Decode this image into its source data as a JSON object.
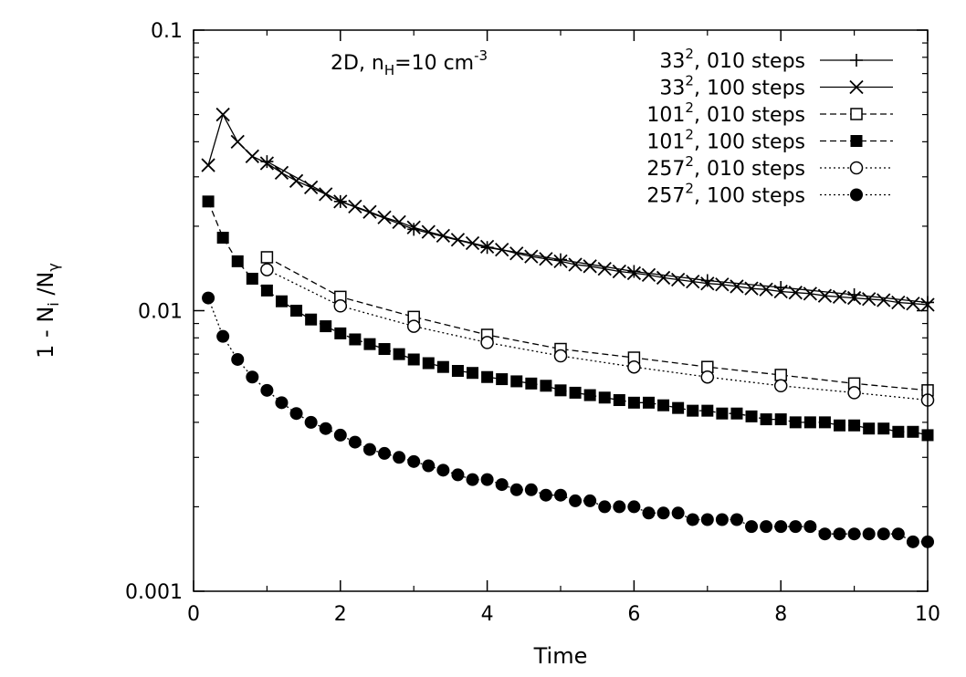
{
  "chart_data": {
    "type": "line",
    "annotation": {
      "base": "2D, n",
      "sub": "H",
      "mid": "=10 cm",
      "sup": "-3"
    },
    "xlabel": "Time",
    "ylabel": {
      "part1": "1 - N",
      "sub1": "i",
      "part2": " /N",
      "sub2": "γ"
    },
    "xlim": [
      0,
      10
    ],
    "ylim": [
      0.001,
      0.1
    ],
    "yscale": "log",
    "xticks": [
      0,
      2,
      4,
      6,
      8,
      10
    ],
    "xtick_labels": [
      "0",
      "2",
      "4",
      "6",
      "8",
      "10"
    ],
    "yticks": [
      0.001,
      0.01,
      0.1
    ],
    "ytick_labels": [
      "0.001",
      "0.01",
      "0.1"
    ],
    "grid": false,
    "legend_position": "top-right",
    "series": [
      {
        "name": "33², 010 steps",
        "label_base": "33",
        "label_sup": "2",
        "label_rest": ", 010 steps",
        "marker": "plus",
        "line": "solid",
        "x": [
          1,
          2,
          3,
          4,
          5,
          6,
          7,
          8,
          9,
          10
        ],
        "y": [
          0.034,
          0.0245,
          0.0195,
          0.0168,
          0.0152,
          0.0138,
          0.0128,
          0.0121,
          0.0114,
          0.0107
        ]
      },
      {
        "name": "33², 100 steps",
        "label_base": "33",
        "label_sup": "2",
        "label_rest": ", 100 steps",
        "marker": "cross",
        "line": "solid",
        "x": [
          0.2,
          0.4,
          0.6,
          0.8,
          1.0,
          1.2,
          1.4,
          1.6,
          1.8,
          2.0,
          2.2,
          2.4,
          2.6,
          2.8,
          3.0,
          3.2,
          3.4,
          3.6,
          3.8,
          4.0,
          4.2,
          4.4,
          4.6,
          4.8,
          5.0,
          5.2,
          5.4,
          5.6,
          5.8,
          6.0,
          6.2,
          6.4,
          6.6,
          6.8,
          7.0,
          7.2,
          7.4,
          7.6,
          7.8,
          8.0,
          8.2,
          8.4,
          8.6,
          8.8,
          9.0,
          9.2,
          9.4,
          9.6,
          9.8,
          10.0
        ],
        "y": [
          0.033,
          0.05,
          0.04,
          0.0355,
          0.0335,
          0.031,
          0.029,
          0.0275,
          0.026,
          0.0245,
          0.0235,
          0.0225,
          0.0215,
          0.0207,
          0.0198,
          0.0191,
          0.0185,
          0.0179,
          0.0174,
          0.0169,
          0.0165,
          0.016,
          0.0156,
          0.0153,
          0.015,
          0.0146,
          0.0144,
          0.0141,
          0.0138,
          0.0136,
          0.0134,
          0.0131,
          0.0129,
          0.0127,
          0.0125,
          0.0124,
          0.0122,
          0.012,
          0.0119,
          0.0117,
          0.0116,
          0.0115,
          0.0113,
          0.0112,
          0.0111,
          0.011,
          0.0109,
          0.0107,
          0.0106,
          0.0105
        ]
      },
      {
        "name": "101², 010 steps",
        "label_base": "101",
        "label_sup": "2",
        "label_rest": ", 010 steps",
        "marker": "open-square",
        "line": "dashed",
        "x": [
          1,
          2,
          3,
          4,
          5,
          6,
          7,
          8,
          9,
          10
        ],
        "y": [
          0.0155,
          0.0112,
          0.0095,
          0.0082,
          0.0073,
          0.0068,
          0.0063,
          0.0059,
          0.0055,
          0.0052
        ]
      },
      {
        "name": "101², 100 steps",
        "label_base": "101",
        "label_sup": "2",
        "label_rest": ", 100 steps",
        "marker": "filled-square",
        "line": "dashed",
        "x": [
          0.2,
          0.4,
          0.6,
          0.8,
          1.0,
          1.2,
          1.4,
          1.6,
          1.8,
          2.0,
          2.2,
          2.4,
          2.6,
          2.8,
          3.0,
          3.2,
          3.4,
          3.6,
          3.8,
          4.0,
          4.2,
          4.4,
          4.6,
          4.8,
          5.0,
          5.2,
          5.4,
          5.6,
          5.8,
          6.0,
          6.2,
          6.4,
          6.6,
          6.8,
          7.0,
          7.2,
          7.4,
          7.6,
          7.8,
          8.0,
          8.2,
          8.4,
          8.6,
          8.8,
          9.0,
          9.2,
          9.4,
          9.6,
          9.8,
          10.0
        ],
        "y": [
          0.0245,
          0.0182,
          0.015,
          0.013,
          0.0118,
          0.0108,
          0.01,
          0.0093,
          0.0088,
          0.0083,
          0.0079,
          0.0076,
          0.0073,
          0.007,
          0.0067,
          0.0065,
          0.0063,
          0.0061,
          0.006,
          0.0058,
          0.0057,
          0.0056,
          0.0055,
          0.0054,
          0.0052,
          0.0051,
          0.005,
          0.0049,
          0.0048,
          0.0047,
          0.0047,
          0.0046,
          0.0045,
          0.0044,
          0.0044,
          0.0043,
          0.0043,
          0.0042,
          0.0041,
          0.0041,
          0.004,
          0.004,
          0.004,
          0.0039,
          0.0039,
          0.0038,
          0.0038,
          0.0037,
          0.0037,
          0.0036
        ]
      },
      {
        "name": "257², 010 steps",
        "label_base": "257",
        "label_sup": "2",
        "label_rest": ", 010 steps",
        "marker": "open-circle",
        "line": "dotted",
        "x": [
          1,
          2,
          3,
          4,
          5,
          6,
          7,
          8,
          9,
          10
        ],
        "y": [
          0.014,
          0.0104,
          0.0088,
          0.0077,
          0.0069,
          0.0063,
          0.0058,
          0.0054,
          0.0051,
          0.0048
        ]
      },
      {
        "name": "257², 100 steps",
        "label_base": "257",
        "label_sup": "2",
        "label_rest": ", 100 steps",
        "marker": "filled-circle",
        "line": "dotted",
        "x": [
          0.2,
          0.4,
          0.6,
          0.8,
          1.0,
          1.2,
          1.4,
          1.6,
          1.8,
          2.0,
          2.2,
          2.4,
          2.6,
          2.8,
          3.0,
          3.2,
          3.4,
          3.6,
          3.8,
          4.0,
          4.2,
          4.4,
          4.6,
          4.8,
          5.0,
          5.2,
          5.4,
          5.6,
          5.8,
          6.0,
          6.2,
          6.4,
          6.6,
          6.8,
          7.0,
          7.2,
          7.4,
          7.6,
          7.8,
          8.0,
          8.2,
          8.4,
          8.6,
          8.8,
          9.0,
          9.2,
          9.4,
          9.6,
          9.8,
          10.0
        ],
        "y": [
          0.0111,
          0.0081,
          0.0067,
          0.0058,
          0.0052,
          0.0047,
          0.0043,
          0.004,
          0.0038,
          0.0036,
          0.0034,
          0.0032,
          0.0031,
          0.003,
          0.0029,
          0.0028,
          0.0027,
          0.0026,
          0.0025,
          0.0025,
          0.0024,
          0.0023,
          0.0023,
          0.0022,
          0.0022,
          0.0021,
          0.0021,
          0.002,
          0.002,
          0.002,
          0.0019,
          0.0019,
          0.0019,
          0.0018,
          0.0018,
          0.0018,
          0.0018,
          0.0017,
          0.0017,
          0.0017,
          0.0017,
          0.0017,
          0.0016,
          0.0016,
          0.0016,
          0.0016,
          0.0016,
          0.0016,
          0.0015,
          0.0015
        ]
      }
    ]
  }
}
